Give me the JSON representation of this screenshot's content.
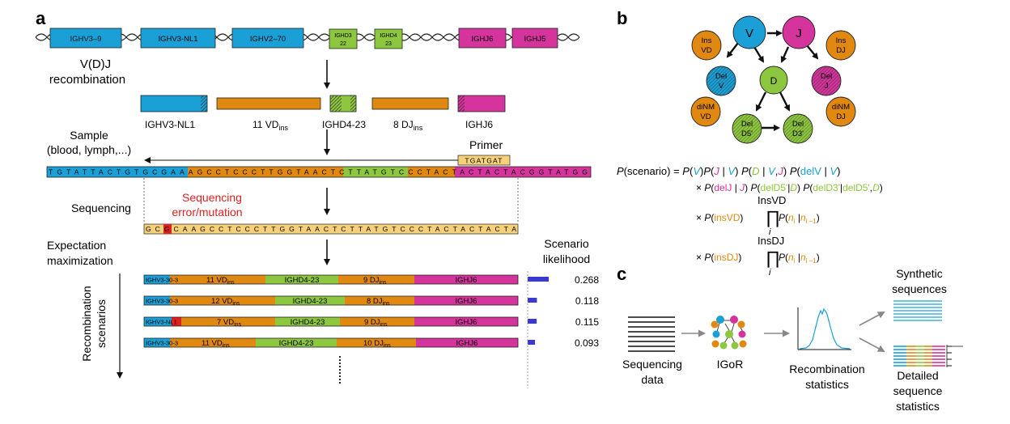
{
  "panel_a": {
    "panel_label": "a",
    "genes_top": [
      "IGHV3–9",
      "IGHV3-NL1",
      "IGHV2–70",
      "IGHD3 22",
      "IGHD4 23",
      "IGHJ6",
      "IGHJ5"
    ],
    "vdj_label": "V(D)J",
    "recombination_label": "recombination",
    "segments_label": {
      "v": "IGHV3-NL1",
      "vd": "11 VD",
      "vd_sub": "ins",
      "d": "IGHD4-23",
      "dj": "8 DJ",
      "dj_sub": "ins",
      "j": "IGHJ6"
    },
    "sample_label": "Sample",
    "sample_sub": "(blood, lymph,...)",
    "primer_label": "Primer",
    "primer_seq": "TGATGAT",
    "long_seq": "TGTATTACTGTGCGAAAGCCTCCCTTGGTAACTCTTATGTCCCTACTACTACTACGGTATGG",
    "sequencing_label": "Sequencing",
    "error_label_1": "Sequencing",
    "error_label_2": "error/mutation",
    "read_seq": "GCGCAAGCCTCCCTTGGTAACTCTTATGTCCCTACTACTACTA",
    "em_label_1": "Expectation",
    "em_label_2": "maximization",
    "recomb_label_1": "Recombination",
    "recomb_label_2": "scenarios",
    "likelihood_header_1": "Scenario",
    "likelihood_header_2": "likelihood",
    "scenarios": [
      {
        "v": "IGHV3-30-3",
        "vd": "11 VD",
        "d": "IGHD4-23",
        "dj": "9 DJ",
        "j": "IGHJ6",
        "likelihood": 0.268
      },
      {
        "v": "IGHV3-30-3",
        "vd": "12 VD",
        "d": "IGHD4-23",
        "dj": "8 DJ",
        "j": "IGHJ6",
        "likelihood": 0.118
      },
      {
        "v": "IGHV3-NL1",
        "vd": "7 VD",
        "d": "IGHD4-23",
        "dj": "9 DJ",
        "j": "IGHJ6",
        "likelihood": 0.115
      },
      {
        "v": "IGHV3-30-3",
        "vd": "11 VD",
        "d": "IGHD4-23",
        "dj": "10 DJ",
        "j": "IGHJ6",
        "likelihood": 0.093
      }
    ],
    "ins_sub": "ins"
  },
  "panel_b": {
    "panel_label": "b",
    "nodes": {
      "V": "V",
      "J": "J",
      "D": "D",
      "ins_vd_1": "Ins",
      "ins_vd_2": "VD",
      "ins_dj_1": "Ins",
      "ins_dj_2": "DJ",
      "del_v_1": "Del",
      "del_v_2": "V",
      "del_j_1": "Del",
      "del_j_2": "J",
      "dinm_vd_1": "diNM",
      "dinm_vd_2": "VD",
      "dinm_dj_1": "diNM",
      "dinm_dj_2": "DJ",
      "del_d5_1": "Del",
      "del_d5_2": "D5'",
      "del_d3_1": "Del",
      "del_d3_2": "D3'"
    },
    "formula": {
      "lhs": "P(scenario) = ",
      "ins_vd_prod": "InsVD",
      "ins_dj_prod": "InsDJ",
      "prod_index": "i"
    }
  },
  "panel_c": {
    "panel_label": "c",
    "seq_data_1": "Sequencing",
    "seq_data_2": "data",
    "igor": "IGoR",
    "stats_1": "Recombination",
    "stats_2": "statistics",
    "synth_1": "Synthetic",
    "synth_2": "sequences",
    "detailed_1": "Detailed",
    "detailed_2": "sequence",
    "detailed_3": "statistics"
  },
  "colors": {
    "v_blue": "#1aa0d6",
    "d_green": "#8dc63f",
    "j_magenta": "#d4349b",
    "ins_orange": "#e0880f",
    "seq_yellow": "#f7d17a",
    "error_red": "#e02020",
    "bar_blue": "#3a3acb"
  }
}
